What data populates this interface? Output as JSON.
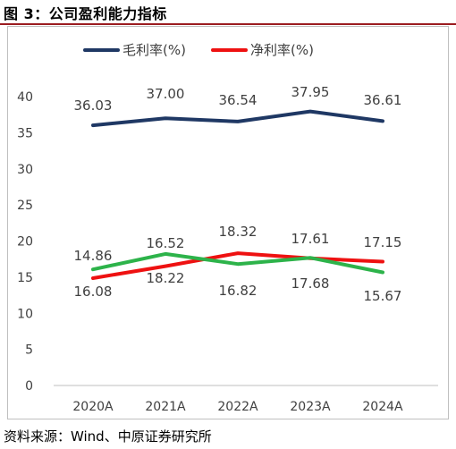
{
  "figure": {
    "title": "图 3：公司盈利能力指标",
    "source": "资料来源：Wind、中原证券研究所"
  },
  "chart_data": {
    "type": "line",
    "categories": [
      "2020A",
      "2021A",
      "2022A",
      "2023A",
      "2024A"
    ],
    "ylim": [
      0,
      40
    ],
    "yticks": [
      0,
      5,
      10,
      15,
      20,
      25,
      30,
      35,
      40
    ],
    "grid": false,
    "legend_position": "top",
    "series": [
      {
        "name": "毛利率(%)",
        "color": "#1f3864",
        "values": [
          36.03,
          37.0,
          36.54,
          37.95,
          36.61
        ],
        "labels": [
          "36.03",
          "37.00",
          "36.54",
          "37.95",
          "36.61"
        ]
      },
      {
        "name": "净利率(%)",
        "color": "#ee1111",
        "values": [
          14.86,
          16.52,
          18.32,
          17.61,
          17.15
        ],
        "labels": [
          "14.86",
          "16.52",
          "18.32",
          "17.61",
          "17.15"
        ]
      },
      {
        "name": "",
        "color": "#2db34a",
        "values": [
          16.08,
          18.22,
          16.82,
          17.68,
          15.67
        ],
        "labels": [
          "16.08",
          "18.22",
          "16.82",
          "17.68",
          "15.67"
        ]
      }
    ]
  }
}
